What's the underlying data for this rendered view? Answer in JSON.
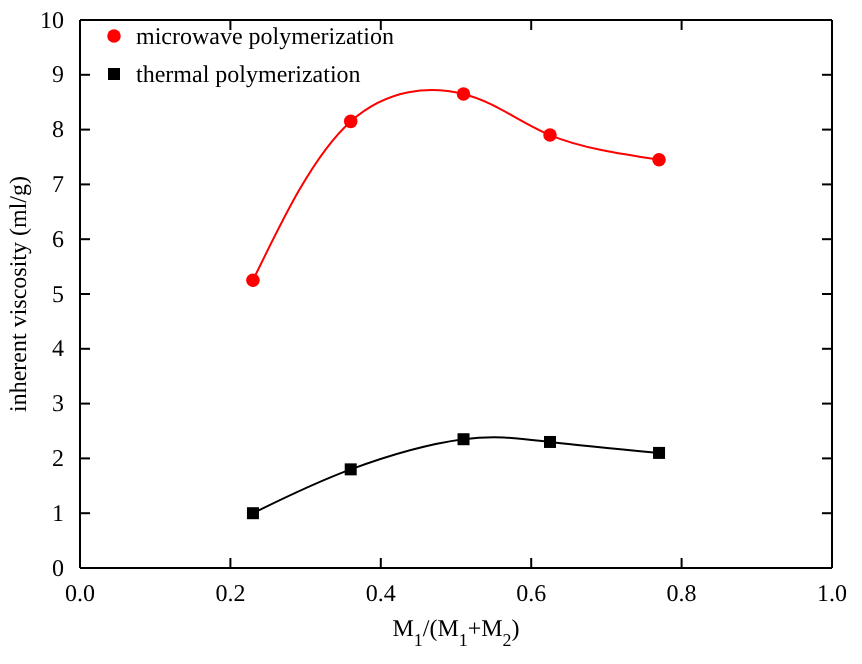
{
  "chart_data": {
    "type": "line",
    "xlabel": "M$_{1}$/(M$_{1}$+M$_{2}$)",
    "ylabel": "inherent viscosity  (ml/g)",
    "x": [
      0.23,
      0.36,
      0.51,
      0.625,
      0.77
    ],
    "series": [
      {
        "name": "microwave polymerization",
        "color": "#ff0000",
        "marker": "circle",
        "values": [
          5.25,
          8.15,
          8.65,
          7.9,
          7.45
        ]
      },
      {
        "name": "thermal polymerization",
        "color": "#000000",
        "marker": "square",
        "values": [
          1.0,
          1.8,
          2.35,
          2.3,
          2.1
        ]
      }
    ],
    "xlim": [
      0,
      1
    ],
    "xticks": [
      {
        "value": 0,
        "label": "0.0"
      },
      {
        "value": 0.2,
        "label": "0.2"
      },
      {
        "value": 0.4,
        "label": "0.4"
      },
      {
        "value": 0.6,
        "label": "0.6"
      },
      {
        "value": 0.8,
        "label": "0.8"
      },
      {
        "value": 1,
        "label": "1.0"
      }
    ],
    "ylim": [
      0,
      10
    ],
    "yticks": [
      0,
      1,
      2,
      3,
      4,
      5,
      6,
      7,
      8,
      9,
      10
    ],
    "legend": "top left",
    "line_style": "solid",
    "grid": false
  }
}
